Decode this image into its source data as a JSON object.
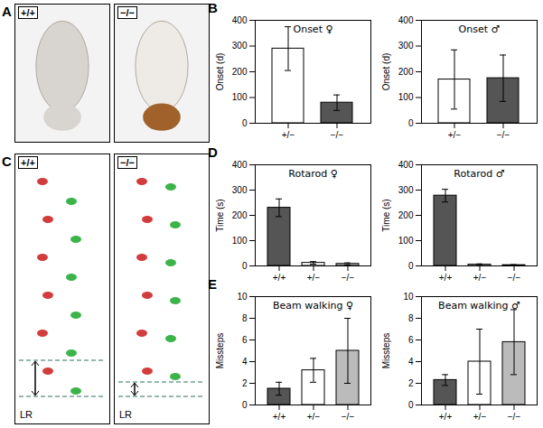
{
  "chart_data": [
    {
      "type": "bar",
      "panel": "B",
      "title": "Onset ♀",
      "y_label": "Onset (d)",
      "categories": [
        "+/−",
        "−/−"
      ],
      "values": [
        290,
        80
      ],
      "errors": [
        85,
        30
      ],
      "colors": [
        "#ffffff",
        "#555555"
      ],
      "ylim": [
        0,
        400
      ],
      "yticks": [
        0,
        100,
        200,
        300,
        400
      ]
    },
    {
      "type": "bar",
      "title": "Onset ♂",
      "y_label": "Onset (d)",
      "categories": [
        "+/−",
        "−/−"
      ],
      "values": [
        170,
        175
      ],
      "errors": [
        115,
        90
      ],
      "colors": [
        "#ffffff",
        "#555555"
      ],
      "ylim": [
        0,
        400
      ],
      "yticks": [
        0,
        100,
        200,
        300,
        400
      ]
    },
    {
      "type": "bar",
      "panel": "D",
      "title": "Rotarod ♀",
      "y_label": "Time (s)",
      "categories": [
        "+/+",
        "+/−",
        "−/−"
      ],
      "values": [
        230,
        12,
        8
      ],
      "errors": [
        35,
        5,
        4
      ],
      "colors": [
        "#555555",
        "#ffffff",
        "#bbbbbb"
      ],
      "ylim": [
        0,
        400
      ],
      "yticks": [
        0,
        100,
        200,
        300,
        400
      ]
    },
    {
      "type": "bar",
      "title": "Rotarod ♂",
      "y_label": "Time (s)",
      "categories": [
        "+/+",
        "+/−",
        "−/−"
      ],
      "values": [
        278,
        5,
        3
      ],
      "errors": [
        25,
        3,
        2
      ],
      "colors": [
        "#555555",
        "#ffffff",
        "#bbbbbb"
      ],
      "ylim": [
        0,
        400
      ],
      "yticks": [
        0,
        100,
        200,
        300,
        400
      ]
    },
    {
      "type": "bar",
      "panel": "E",
      "title": "Beam walking ♀",
      "y_label": "Missteps",
      "categories": [
        "+/+",
        "+/−",
        "−/−"
      ],
      "values": [
        1.5,
        3.2,
        5
      ],
      "errors": [
        0.6,
        1.1,
        3
      ],
      "colors": [
        "#555555",
        "#ffffff",
        "#bbbbbb"
      ],
      "ylim": [
        0,
        10
      ],
      "yticks": [
        0,
        2,
        4,
        6,
        8,
        10
      ]
    },
    {
      "type": "bar",
      "title": "Beam walking ♂",
      "y_label": "Missteps",
      "categories": [
        "+/+",
        "+/−",
        "−/−"
      ],
      "values": [
        2.3,
        4,
        5.8
      ],
      "errors": [
        0.5,
        3,
        3
      ],
      "colors": [
        "#555555",
        "#ffffff",
        "#bbbbbb"
      ],
      "ylim": [
        0,
        10
      ],
      "yticks": [
        0,
        2,
        4,
        6,
        8,
        10
      ]
    }
  ],
  "photo_panels": [
    {
      "panel": "A",
      "images": [
        {
          "label": "+/+"
        },
        {
          "label": "−/−"
        }
      ]
    },
    {
      "panel": "C",
      "images": [
        {
          "label": "+/+",
          "annotation": "LR"
        },
        {
          "label": "−/−",
          "annotation": "LR"
        }
      ]
    }
  ]
}
